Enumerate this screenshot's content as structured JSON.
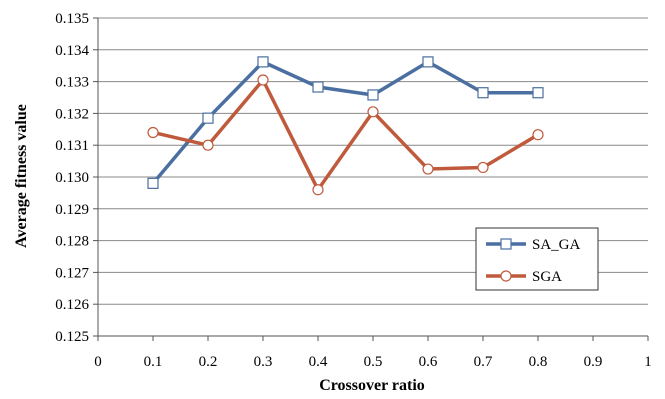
{
  "chart_data": {
    "type": "line",
    "xlabel": "Crossover ratio",
    "ylabel": "Average fitness value",
    "xlim": [
      0,
      1
    ],
    "ylim": [
      0.125,
      0.135
    ],
    "x_ticks": [
      "0",
      "0.1",
      "0.2",
      "0.3",
      "0.4",
      "0.5",
      "0.6",
      "0.7",
      "0.8",
      "0.9",
      "1"
    ],
    "y_ticks": [
      "0.125",
      "0.126",
      "0.127",
      "0.128",
      "0.129",
      "0.130",
      "0.131",
      "0.132",
      "0.133",
      "0.134",
      "0.135"
    ],
    "grid": "horizontal",
    "legend_position": "right",
    "series": [
      {
        "name": "SA_GA",
        "color": "#4a6fa0",
        "marker": "square",
        "x": [
          0.1,
          0.2,
          0.3,
          0.4,
          0.5,
          0.6,
          0.7,
          0.8
        ],
        "values": [
          0.1298,
          0.13185,
          0.13362,
          0.13283,
          0.13258,
          0.13362,
          0.13265,
          0.13265
        ]
      },
      {
        "name": "SGA",
        "color": "#c05a3c",
        "marker": "circle",
        "x": [
          0.1,
          0.2,
          0.3,
          0.4,
          0.5,
          0.6,
          0.7,
          0.8
        ],
        "values": [
          0.1314,
          0.131,
          0.13305,
          0.1296,
          0.13205,
          0.13025,
          0.1303,
          0.13133
        ]
      }
    ]
  }
}
